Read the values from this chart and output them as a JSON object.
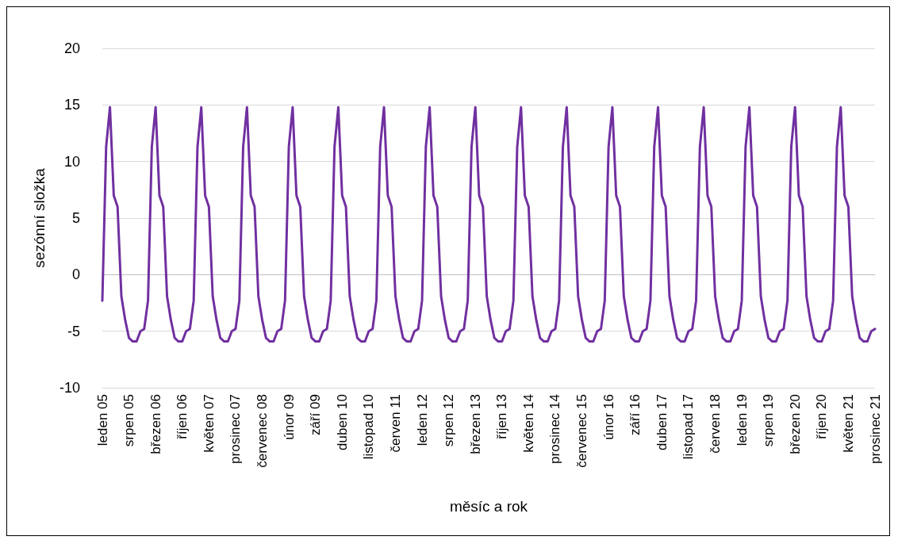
{
  "chart_data": {
    "type": "line",
    "xlabel": "měsíc a rok",
    "ylabel": "sezónní složka",
    "color": "#7030a0",
    "ylim": [
      -10,
      20
    ],
    "yticks": [
      -10,
      -5,
      0,
      5,
      10,
      15,
      20
    ],
    "grid": "y",
    "marker": "none",
    "line_style": "solid",
    "categories": [
      "leden 05",
      null,
      null,
      null,
      null,
      null,
      null,
      "srpen 05",
      null,
      null,
      null,
      null,
      null,
      null,
      "březen 06",
      null,
      null,
      null,
      null,
      null,
      null,
      "říjen 06",
      null,
      null,
      null,
      null,
      null,
      null,
      "květen 07",
      null,
      null,
      null,
      null,
      null,
      null,
      "prosinec 07",
      null,
      null,
      null,
      null,
      null,
      null,
      "červenec 08",
      null,
      null,
      null,
      null,
      null,
      null,
      "únor 09",
      null,
      null,
      null,
      null,
      null,
      null,
      "září 09",
      null,
      null,
      null,
      null,
      null,
      null,
      "duben 10",
      null,
      null,
      null,
      null,
      null,
      null,
      "listopad 10",
      null,
      null,
      null,
      null,
      null,
      null,
      "červen 11",
      null,
      null,
      null,
      null,
      null,
      null,
      "leden 12",
      null,
      null,
      null,
      null,
      null,
      null,
      "srpen 12",
      null,
      null,
      null,
      null,
      null,
      null,
      "březen 13",
      null,
      null,
      null,
      null,
      null,
      null,
      "říjen 13",
      null,
      null,
      null,
      null,
      null,
      null,
      "květen 14",
      null,
      null,
      null,
      null,
      null,
      null,
      "prosinec 14",
      null,
      null,
      null,
      null,
      null,
      null,
      "červenec 15",
      null,
      null,
      null,
      null,
      null,
      null,
      "únor 16",
      null,
      null,
      null,
      null,
      null,
      null,
      "září 16",
      null,
      null,
      null,
      null,
      null,
      null,
      "duben 17",
      null,
      null,
      null,
      null,
      null,
      null,
      "listopad 17",
      null,
      null,
      null,
      null,
      null,
      null,
      "červen 18",
      null,
      null,
      null,
      null,
      null,
      null,
      "leden 19",
      null,
      null,
      null,
      null,
      null,
      null,
      "srpen 19",
      null,
      null,
      null,
      null,
      null,
      null,
      "březen 20",
      null,
      null,
      null,
      null,
      null,
      null,
      "říjen 20",
      null,
      null,
      null,
      null,
      null,
      null,
      "květen 21",
      null,
      null,
      null,
      null,
      null,
      null,
      "prosinec 21"
    ],
    "values": [
      -2.3,
      11.3,
      14.8,
      7,
      6,
      -1.9,
      -4,
      -5.6,
      -5.9,
      -5.9,
      -5,
      -4.8,
      -2.3,
      11.3,
      14.8,
      7,
      6,
      -1.9,
      -4,
      -5.6,
      -5.9,
      -5.9,
      -5,
      -4.8,
      -2.3,
      11.3,
      14.8,
      7,
      6,
      -1.9,
      -4,
      -5.6,
      -5.9,
      -5.9,
      -5,
      -4.8,
      -2.3,
      11.3,
      14.8,
      7,
      6,
      -1.9,
      -4,
      -5.6,
      -5.9,
      -5.9,
      -5,
      -4.8,
      -2.3,
      11.3,
      14.8,
      7,
      6,
      -1.9,
      -4,
      -5.6,
      -5.9,
      -5.9,
      -5,
      -4.8,
      -2.3,
      11.3,
      14.8,
      7,
      6,
      -1.9,
      -4,
      -5.6,
      -5.9,
      -5.9,
      -5,
      -4.8,
      -2.3,
      11.3,
      14.8,
      7,
      6,
      -1.9,
      -4,
      -5.6,
      -5.9,
      -5.9,
      -5,
      -4.8,
      -2.3,
      11.3,
      14.8,
      7,
      6,
      -1.9,
      -4,
      -5.6,
      -5.9,
      -5.9,
      -5,
      -4.8,
      -2.3,
      11.3,
      14.8,
      7,
      6,
      -1.9,
      -4,
      -5.6,
      -5.9,
      -5.9,
      -5,
      -4.8,
      -2.3,
      11.3,
      14.8,
      7,
      6,
      -1.9,
      -4,
      -5.6,
      -5.9,
      -5.9,
      -5,
      -4.8,
      -2.3,
      11.3,
      14.8,
      7,
      6,
      -1.9,
      -4,
      -5.6,
      -5.9,
      -5.9,
      -5,
      -4.8,
      -2.3,
      11.3,
      14.8,
      7,
      6,
      -1.9,
      -4,
      -5.6,
      -5.9,
      -5.9,
      -5,
      -4.8,
      -2.3,
      11.3,
      14.8,
      7,
      6,
      -1.9,
      -4,
      -5.6,
      -5.9,
      -5.9,
      -5,
      -4.8,
      -2.3,
      11.3,
      14.8,
      7,
      6,
      -1.9,
      -4,
      -5.6,
      -5.9,
      -5.9,
      -5,
      -4.8,
      -2.3,
      11.3,
      14.8,
      7,
      6,
      -1.9,
      -4,
      -5.6,
      -5.9,
      -5.9,
      -5,
      -4.8,
      -2.3,
      11.3,
      14.8,
      7,
      6,
      -1.9,
      -4,
      -5.6,
      -5.9,
      -5.9,
      -5,
      -4.8,
      -2.3,
      11.3,
      14.8,
      7,
      6,
      -1.9,
      -4,
      -5.6,
      -5.9,
      -5.9,
      -5,
      -4.8
    ]
  }
}
